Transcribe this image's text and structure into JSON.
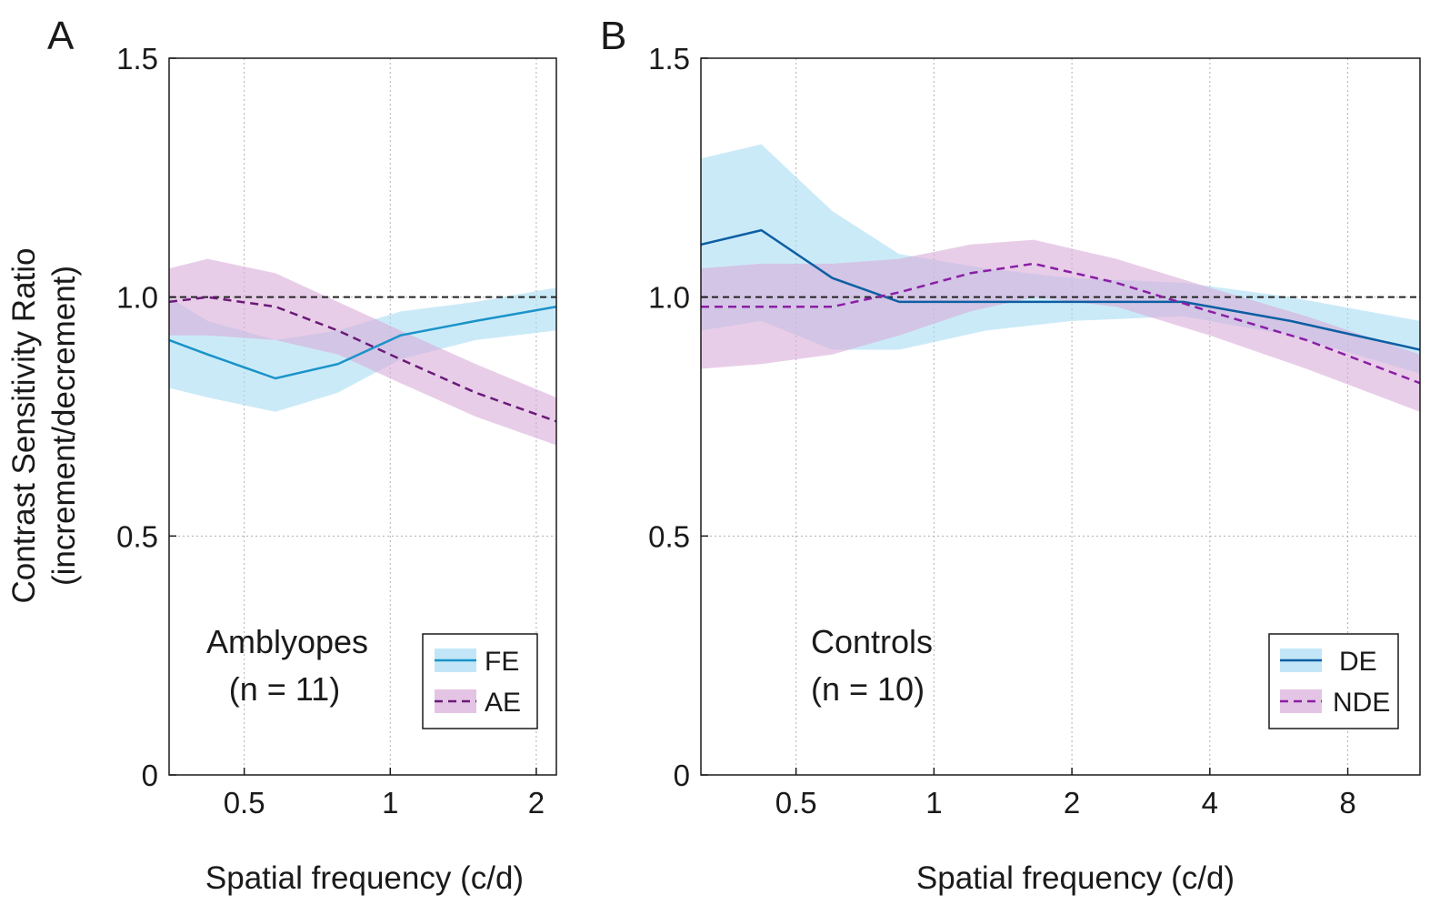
{
  "colors": {
    "fe_line": "#1a93c9",
    "fe_band": "#a8dcf3",
    "ae_line": "#6a1a78",
    "ae_band": "#d9abd9",
    "de_line": "#0d5fa3",
    "de_band": "#a8dcf3",
    "nde_line": "#8a1fa6",
    "nde_band": "#d9abd9",
    "reference": "#222222",
    "grid": "#b0b0b0"
  },
  "chart_data": [
    {
      "panel": "A",
      "type": "line",
      "xscale": "log2",
      "xlim": [
        0.35,
        2.2
      ],
      "ylim": [
        0,
        1.5
      ],
      "x_ticks": [
        0.5,
        1,
        2
      ],
      "x_tick_labels": [
        "0.5",
        "1",
        "2"
      ],
      "y_ticks": [
        0,
        0.5,
        1.0,
        1.5
      ],
      "y_tick_labels": [
        "0",
        "0.5",
        "1.0",
        "1.5"
      ],
      "xlabel": "Spatial frequency (c/d)",
      "ylabel_line1": "Contrast Sensitivity Ratio",
      "ylabel_line2": "(increment/decrement)",
      "group_label_line1": "Amblyopes",
      "group_label_line2": "(n = 11)",
      "reference_y": 1.0,
      "grid": true,
      "legend_position": "bottom-right",
      "series": [
        {
          "name": "FE",
          "style": "solid",
          "line_color_key": "fe_line",
          "band_color_key": "fe_band",
          "x": [
            0.35,
            0.42,
            0.58,
            0.78,
            1.05,
            1.5,
            2.2
          ],
          "y": [
            0.91,
            0.88,
            0.83,
            0.86,
            0.92,
            0.95,
            0.98
          ],
          "upper": [
            1.0,
            0.95,
            0.91,
            0.93,
            0.97,
            0.99,
            1.02
          ],
          "lower": [
            0.81,
            0.79,
            0.76,
            0.8,
            0.87,
            0.91,
            0.93
          ]
        },
        {
          "name": "AE",
          "style": "dashed",
          "line_color_key": "ae_line",
          "band_color_key": "ae_band",
          "x": [
            0.35,
            0.42,
            0.58,
            0.78,
            1.05,
            1.5,
            2.2
          ],
          "y": [
            0.99,
            1.0,
            0.98,
            0.93,
            0.87,
            0.8,
            0.74
          ],
          "upper": [
            1.06,
            1.08,
            1.05,
            0.99,
            0.93,
            0.86,
            0.79
          ],
          "lower": [
            0.92,
            0.92,
            0.91,
            0.88,
            0.82,
            0.75,
            0.69
          ]
        }
      ]
    },
    {
      "panel": "B",
      "type": "line",
      "xscale": "log2",
      "xlim": [
        0.31,
        11.5
      ],
      "ylim": [
        0,
        1.5
      ],
      "x_ticks": [
        0.5,
        1,
        2,
        4,
        8
      ],
      "x_tick_labels": [
        "0.5",
        "1",
        "2",
        "4",
        "8"
      ],
      "y_ticks": [
        0,
        0.5,
        1.0,
        1.5
      ],
      "y_tick_labels": [
        "0",
        "0.5",
        "1.0",
        "1.5"
      ],
      "xlabel": "Spatial frequency (c/d)",
      "group_label_line1": "Controls",
      "group_label_line2": "(n = 10)",
      "reference_y": 1.0,
      "grid": true,
      "legend_position": "bottom-right",
      "series": [
        {
          "name": "DE",
          "style": "solid",
          "line_color_key": "de_line",
          "band_color_key": "de_band",
          "x": [
            0.31,
            0.42,
            0.6,
            0.84,
            1.3,
            2.0,
            3.5,
            6.0,
            11.5
          ],
          "y": [
            1.11,
            1.14,
            1.04,
            0.99,
            0.99,
            0.99,
            0.99,
            0.95,
            0.89
          ],
          "upper": [
            1.29,
            1.32,
            1.18,
            1.09,
            1.06,
            1.04,
            1.03,
            1.0,
            0.95
          ],
          "lower": [
            0.93,
            0.95,
            0.89,
            0.89,
            0.93,
            0.95,
            0.96,
            0.92,
            0.84
          ]
        },
        {
          "name": "NDE",
          "style": "dashed",
          "line_color_key": "nde_line",
          "band_color_key": "nde_band",
          "x": [
            0.31,
            0.42,
            0.6,
            0.84,
            1.2,
            1.65,
            2.5,
            4.0,
            6.5,
            11.5
          ],
          "y": [
            0.98,
            0.98,
            0.98,
            1.01,
            1.05,
            1.07,
            1.03,
            0.97,
            0.91,
            0.82
          ],
          "upper": [
            1.06,
            1.07,
            1.07,
            1.08,
            1.11,
            1.12,
            1.08,
            1.02,
            0.96,
            0.88
          ],
          "lower": [
            0.85,
            0.86,
            0.88,
            0.92,
            0.97,
            1.0,
            0.98,
            0.92,
            0.85,
            0.76
          ]
        }
      ]
    }
  ]
}
